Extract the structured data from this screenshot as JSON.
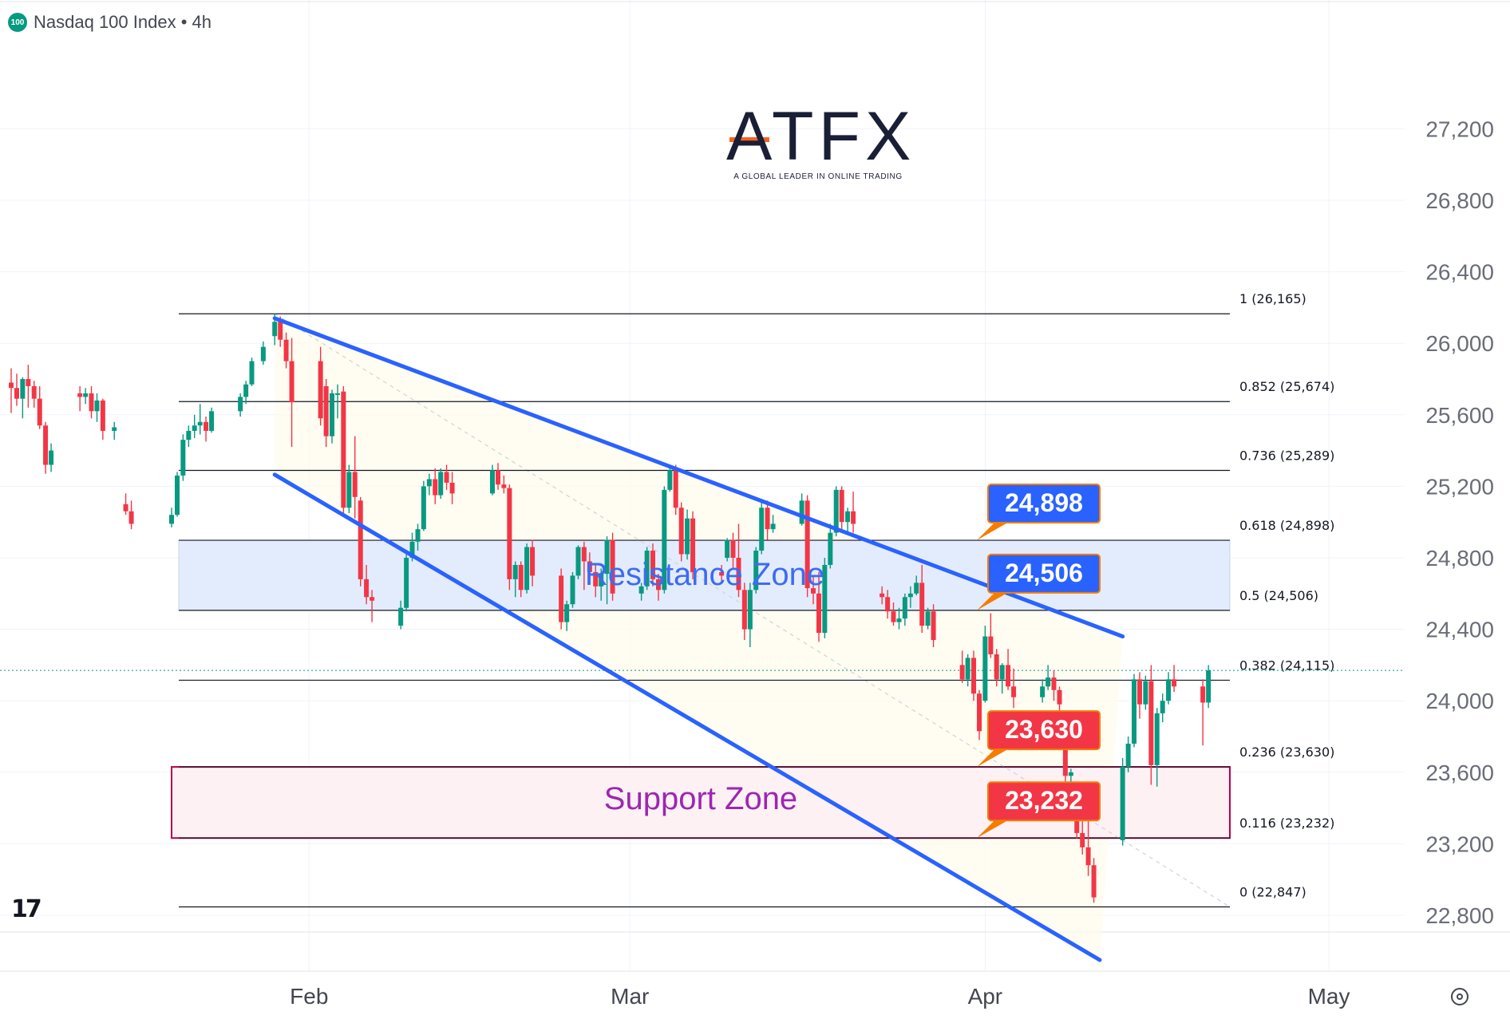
{
  "header": {
    "symbol_badge": "100",
    "title": "Nasdaq 100 Index • 4h"
  },
  "logo": {
    "name": "ATFX",
    "tagline": "A GLOBAL LEADER IN ONLINE TRADING"
  },
  "chart_data": {
    "type": "candlestick",
    "instrument": "Nasdaq 100 Index",
    "timeframe": "4h",
    "x_labels": [
      "Feb",
      "Mar",
      "Apr",
      "May"
    ],
    "y_ticks": [
      "27,200",
      "26,800",
      "26,400",
      "26,000",
      "25,600",
      "25,200",
      "24,800",
      "24,400",
      "24,000",
      "23,600",
      "23,200",
      "22,800"
    ],
    "ylim": [
      22550,
      27300
    ],
    "grid": true,
    "colors": {
      "up": "#089981",
      "down": "#f23645",
      "channel": "#2962ff",
      "resistance_fill": "#e3ecfd",
      "support_fill": "#fdf1f4",
      "support_border": "#b7004a"
    },
    "fib_levels": [
      {
        "ratio": "1",
        "price": 26165,
        "label": "1 (26,165)"
      },
      {
        "ratio": "0.852",
        "price": 25674,
        "label": "0.852 (25,674)"
      },
      {
        "ratio": "0.736",
        "price": 25289,
        "label": "0.736 (25,289)"
      },
      {
        "ratio": "0.618",
        "price": 24898,
        "label": "0.618 (24,898)"
      },
      {
        "ratio": "0.5",
        "price": 24506,
        "label": "0.5 (24,506)"
      },
      {
        "ratio": "0.382",
        "price": 24115,
        "label": "0.382 (24,115)"
      },
      {
        "ratio": "0.236",
        "price": 23630,
        "label": "0.236 (23,630)"
      },
      {
        "ratio": "0.116",
        "price": 23232,
        "label": "0.116 (23,232)"
      },
      {
        "ratio": "0",
        "price": 22847,
        "label": "0 (22,847)"
      }
    ],
    "zones": [
      {
        "name": "Resistance Zone",
        "low": 24506,
        "high": 24898,
        "color": "#3d6cf0"
      },
      {
        "name": "Support Zone",
        "low": 23232,
        "high": 23630,
        "color": "#9c27b0"
      }
    ],
    "price_callouts": [
      {
        "text": "24,898",
        "price": 24898,
        "color": "#2962ff"
      },
      {
        "text": "24,506",
        "price": 24506,
        "color": "#2962ff"
      },
      {
        "text": "23,630",
        "price": 23630,
        "color": "#f23645"
      },
      {
        "text": "23,232",
        "price": 23232,
        "color": "#f23645"
      }
    ],
    "channel": {
      "upper": [
        {
          "date": "Jan 29",
          "price": 26140
        },
        {
          "date": "Apr 13",
          "price": 24360
        }
      ],
      "lower": [
        {
          "date": "Jan 29",
          "price": 25265
        },
        {
          "date": "Apr 11",
          "price": 22550
        }
      ]
    },
    "candles": [
      {
        "t": "Jan 06",
        "o": 25780,
        "h": 25860,
        "l": 25610,
        "c": 25750
      },
      {
        "t": "Jan 06",
        "o": 25750,
        "h": 25830,
        "l": 25650,
        "c": 25690
      },
      {
        "t": "Jan 07",
        "o": 25690,
        "h": 25810,
        "l": 25580,
        "c": 25800
      },
      {
        "t": "Jan 07",
        "o": 25800,
        "h": 25880,
        "l": 25640,
        "c": 25760
      },
      {
        "t": "Jan 08",
        "o": 25760,
        "h": 25790,
        "l": 25640,
        "c": 25690
      },
      {
        "t": "Jan 08",
        "o": 25690,
        "h": 25760,
        "l": 25520,
        "c": 25540
      },
      {
        "t": "Jan 09",
        "o": 25540,
        "h": 25560,
        "l": 25270,
        "c": 25320
      },
      {
        "t": "Jan 09",
        "o": 25320,
        "h": 25440,
        "l": 25280,
        "c": 25400
      },
      {
        "t": "Jan 12",
        "o": 25720,
        "h": 25760,
        "l": 25620,
        "c": 25700
      },
      {
        "t": "Jan 12",
        "o": 25700,
        "h": 25750,
        "l": 25660,
        "c": 25720
      },
      {
        "t": "Jan 13",
        "o": 25720,
        "h": 25760,
        "l": 25580,
        "c": 25620
      },
      {
        "t": "Jan 13",
        "o": 25620,
        "h": 25720,
        "l": 25560,
        "c": 25680
      },
      {
        "t": "Jan 14",
        "o": 25680,
        "h": 25690,
        "l": 25460,
        "c": 25510
      },
      {
        "t": "Jan 15",
        "o": 25510,
        "h": 25560,
        "l": 25460,
        "c": 25530
      },
      {
        "t": "Jan 16",
        "o": 25100,
        "h": 25160,
        "l": 25040,
        "c": 25060
      },
      {
        "t": "Jan 16",
        "o": 25060,
        "h": 25120,
        "l": 24960,
        "c": 24990
      },
      {
        "t": "Jan 20",
        "o": 24990,
        "h": 25080,
        "l": 24970,
        "c": 25040
      },
      {
        "t": "Jan 20",
        "o": 25040,
        "h": 25280,
        "l": 25030,
        "c": 25260
      },
      {
        "t": "Jan 21",
        "o": 25260,
        "h": 25490,
        "l": 25230,
        "c": 25460
      },
      {
        "t": "Jan 21",
        "o": 25460,
        "h": 25540,
        "l": 25420,
        "c": 25510
      },
      {
        "t": "Jan 22",
        "o": 25510,
        "h": 25600,
        "l": 25470,
        "c": 25540
      },
      {
        "t": "Jan 22",
        "o": 25540,
        "h": 25660,
        "l": 25490,
        "c": 25560
      },
      {
        "t": "Jan 23",
        "o": 25560,
        "h": 25590,
        "l": 25450,
        "c": 25510
      },
      {
        "t": "Jan 23",
        "o": 25510,
        "h": 25640,
        "l": 25500,
        "c": 25620
      },
      {
        "t": "Jan 26",
        "o": 25620,
        "h": 25720,
        "l": 25590,
        "c": 25700
      },
      {
        "t": "Jan 26",
        "o": 25700,
        "h": 25790,
        "l": 25660,
        "c": 25770
      },
      {
        "t": "Jan 27",
        "o": 25770,
        "h": 25920,
        "l": 25760,
        "c": 25900
      },
      {
        "t": "Jan 28",
        "o": 25900,
        "h": 26010,
        "l": 25880,
        "c": 25980
      },
      {
        "t": "Jan 29",
        "o": 26040,
        "h": 26165,
        "l": 25990,
        "c": 26120
      },
      {
        "t": "Jan 29",
        "o": 26120,
        "h": 26150,
        "l": 25980,
        "c": 26020
      },
      {
        "t": "Jan 30",
        "o": 26020,
        "h": 26060,
        "l": 25860,
        "c": 25900
      },
      {
        "t": "Jan 30",
        "o": 25900,
        "h": 26030,
        "l": 25420,
        "c": 25670
      },
      {
        "t": "Feb 02",
        "o": 25900,
        "h": 25980,
        "l": 25540,
        "c": 25580
      },
      {
        "t": "Feb 02",
        "o": 25760,
        "h": 25800,
        "l": 25420,
        "c": 25480
      },
      {
        "t": "Feb 03",
        "o": 25480,
        "h": 25740,
        "l": 25440,
        "c": 25720
      },
      {
        "t": "Feb 03",
        "o": 25720,
        "h": 25770,
        "l": 25580,
        "c": 25720
      },
      {
        "t": "Feb 04",
        "o": 25730,
        "h": 25760,
        "l": 25050,
        "c": 25080
      },
      {
        "t": "Feb 04",
        "o": 25080,
        "h": 25320,
        "l": 25050,
        "c": 25280
      },
      {
        "t": "Feb 05",
        "o": 25280,
        "h": 25480,
        "l": 25020,
        "c": 25140
      },
      {
        "t": "Feb 05",
        "o": 25120,
        "h": 25140,
        "l": 24640,
        "c": 24680
      },
      {
        "t": "Feb 06",
        "o": 24680,
        "h": 24760,
        "l": 24540,
        "c": 24580
      },
      {
        "t": "Feb 06",
        "o": 24580,
        "h": 24620,
        "l": 24440,
        "c": 24560
      },
      {
        "t": "Feb 09",
        "o": 24420,
        "h": 24560,
        "l": 24400,
        "c": 24520
      },
      {
        "t": "Feb 09",
        "o": 24520,
        "h": 24820,
        "l": 24500,
        "c": 24800
      },
      {
        "t": "Feb 10",
        "o": 24800,
        "h": 24940,
        "l": 24780,
        "c": 24890
      },
      {
        "t": "Feb 10",
        "o": 24890,
        "h": 24990,
        "l": 24840,
        "c": 24960
      },
      {
        "t": "Feb 11",
        "o": 24960,
        "h": 25230,
        "l": 24950,
        "c": 25200
      },
      {
        "t": "Feb 11",
        "o": 25200,
        "h": 25270,
        "l": 25150,
        "c": 25240
      },
      {
        "t": "Feb 12",
        "o": 25240,
        "h": 25300,
        "l": 25100,
        "c": 25150
      },
      {
        "t": "Feb 12",
        "o": 25150,
        "h": 25300,
        "l": 25130,
        "c": 25280
      },
      {
        "t": "Feb 13",
        "o": 25280,
        "h": 25320,
        "l": 25180,
        "c": 25220
      },
      {
        "t": "Feb 13",
        "o": 25220,
        "h": 25280,
        "l": 25100,
        "c": 25160
      },
      {
        "t": "Feb 17",
        "o": 25160,
        "h": 25320,
        "l": 25150,
        "c": 25290
      },
      {
        "t": "Feb 17",
        "o": 25290,
        "h": 25330,
        "l": 25180,
        "c": 25210
      },
      {
        "t": "Feb 18",
        "o": 25210,
        "h": 25260,
        "l": 25160,
        "c": 25190
      },
      {
        "t": "Feb 18",
        "o": 25190,
        "h": 25210,
        "l": 24620,
        "c": 24680
      },
      {
        "t": "Feb 19",
        "o": 24680,
        "h": 24780,
        "l": 24580,
        "c": 24760
      },
      {
        "t": "Feb 19",
        "o": 24760,
        "h": 24780,
        "l": 24580,
        "c": 24620
      },
      {
        "t": "Feb 20",
        "o": 24620,
        "h": 24880,
        "l": 24600,
        "c": 24860
      },
      {
        "t": "Feb 20",
        "o": 24860,
        "h": 24900,
        "l": 24640,
        "c": 24700
      },
      {
        "t": "Feb 23",
        "o": 24700,
        "h": 24740,
        "l": 24400,
        "c": 24440
      },
      {
        "t": "Feb 23",
        "o": 24440,
        "h": 24560,
        "l": 24390,
        "c": 24540
      },
      {
        "t": "Feb 24",
        "o": 24540,
        "h": 24720,
        "l": 24520,
        "c": 24700
      },
      {
        "t": "Feb 24",
        "o": 24700,
        "h": 24870,
        "l": 24680,
        "c": 24860
      },
      {
        "t": "Feb 25",
        "o": 24860,
        "h": 24890,
        "l": 24620,
        "c": 24780
      },
      {
        "t": "Feb 25",
        "o": 24780,
        "h": 24830,
        "l": 24660,
        "c": 24720
      },
      {
        "t": "Feb 26",
        "o": 24720,
        "h": 24760,
        "l": 24580,
        "c": 24640
      },
      {
        "t": "Feb 26",
        "o": 24640,
        "h": 24740,
        "l": 24560,
        "c": 24710
      },
      {
        "t": "Feb 27",
        "o": 24710,
        "h": 24920,
        "l": 24540,
        "c": 24900
      },
      {
        "t": "Feb 27",
        "o": 24900,
        "h": 24940,
        "l": 24560,
        "c": 24600
      },
      {
        "t": "Mar 02",
        "o": 24600,
        "h": 24660,
        "l": 24560,
        "c": 24640
      },
      {
        "t": "Mar 02",
        "o": 24640,
        "h": 24860,
        "l": 24620,
        "c": 24840
      },
      {
        "t": "Mar 03",
        "o": 24840,
        "h": 24880,
        "l": 24640,
        "c": 24680
      },
      {
        "t": "Mar 03",
        "o": 24680,
        "h": 24710,
        "l": 24560,
        "c": 24620
      },
      {
        "t": "Mar 04",
        "o": 24620,
        "h": 25200,
        "l": 24600,
        "c": 25180
      },
      {
        "t": "Mar 04",
        "o": 25180,
        "h": 25310,
        "l": 25170,
        "c": 25290
      },
      {
        "t": "Mar 05",
        "o": 25290,
        "h": 25320,
        "l": 25040,
        "c": 25080
      },
      {
        "t": "Mar 05",
        "o": 25080,
        "h": 25110,
        "l": 24780,
        "c": 24820
      },
      {
        "t": "Mar 06",
        "o": 24820,
        "h": 25070,
        "l": 24790,
        "c": 25020
      },
      {
        "t": "Mar 06",
        "o": 25020,
        "h": 25060,
        "l": 24680,
        "c": 24720
      },
      {
        "t": "Mar 09",
        "o": 24720,
        "h": 24760,
        "l": 24660,
        "c": 24700
      },
      {
        "t": "Mar 09",
        "o": 24800,
        "h": 24910,
        "l": 24780,
        "c": 24900
      },
      {
        "t": "Mar 10",
        "o": 24900,
        "h": 24940,
        "l": 24740,
        "c": 24800
      },
      {
        "t": "Mar 10",
        "o": 24800,
        "h": 24990,
        "l": 24580,
        "c": 24620
      },
      {
        "t": "Mar 11",
        "o": 24620,
        "h": 24660,
        "l": 24340,
        "c": 24400
      },
      {
        "t": "Mar 11",
        "o": 24400,
        "h": 24660,
        "l": 24300,
        "c": 24620
      },
      {
        "t": "Mar 12",
        "o": 24620,
        "h": 24860,
        "l": 24600,
        "c": 24840
      },
      {
        "t": "Mar 12",
        "o": 24840,
        "h": 25110,
        "l": 24820,
        "c": 25080
      },
      {
        "t": "Mar 13",
        "o": 25080,
        "h": 25120,
        "l": 24900,
        "c": 24960
      },
      {
        "t": "Mar 13",
        "o": 24960,
        "h": 25040,
        "l": 24940,
        "c": 24990
      },
      {
        "t": "Mar 16",
        "o": 24990,
        "h": 25160,
        "l": 24980,
        "c": 25120
      },
      {
        "t": "Mar 16",
        "o": 25120,
        "h": 25150,
        "l": 24580,
        "c": 24630
      },
      {
        "t": "Mar 17",
        "o": 24630,
        "h": 24700,
        "l": 24540,
        "c": 24600
      },
      {
        "t": "Mar 17",
        "o": 24600,
        "h": 24720,
        "l": 24330,
        "c": 24380
      },
      {
        "t": "Mar 18",
        "o": 24380,
        "h": 24800,
        "l": 24350,
        "c": 24760
      },
      {
        "t": "Mar 18",
        "o": 24760,
        "h": 24990,
        "l": 24740,
        "c": 24940
      },
      {
        "t": "Mar 19",
        "o": 24940,
        "h": 25200,
        "l": 24920,
        "c": 25180
      },
      {
        "t": "Mar 19",
        "o": 25180,
        "h": 25200,
        "l": 24960,
        "c": 25000
      },
      {
        "t": "Mar 20",
        "o": 25000,
        "h": 25080,
        "l": 24940,
        "c": 25060
      },
      {
        "t": "Mar 20",
        "o": 25060,
        "h": 25170,
        "l": 24940,
        "c": 24990
      },
      {
        "t": "Mar 23",
        "o": 24600,
        "h": 24640,
        "l": 24540,
        "c": 24580
      },
      {
        "t": "Mar 23",
        "o": 24580,
        "h": 24620,
        "l": 24460,
        "c": 24500
      },
      {
        "t": "Mar 24",
        "o": 24500,
        "h": 24550,
        "l": 24420,
        "c": 24440
      },
      {
        "t": "Mar 24",
        "o": 24440,
        "h": 24520,
        "l": 24400,
        "c": 24460
      },
      {
        "t": "Mar 25",
        "o": 24460,
        "h": 24600,
        "l": 24420,
        "c": 24580
      },
      {
        "t": "Mar 25",
        "o": 24580,
        "h": 24640,
        "l": 24520,
        "c": 24600
      },
      {
        "t": "Mar 26",
        "o": 24600,
        "h": 24700,
        "l": 24590,
        "c": 24660
      },
      {
        "t": "Mar 26",
        "o": 24660,
        "h": 24760,
        "l": 24380,
        "c": 24420
      },
      {
        "t": "Mar 27",
        "o": 24420,
        "h": 24520,
        "l": 24400,
        "c": 24500
      },
      {
        "t": "Mar 27",
        "o": 24500,
        "h": 24540,
        "l": 24300,
        "c": 24340
      },
      {
        "t": "Mar 30",
        "o": 24200,
        "h": 24280,
        "l": 24100,
        "c": 24120
      },
      {
        "t": "Mar 30",
        "o": 24120,
        "h": 24260,
        "l": 24080,
        "c": 24240
      },
      {
        "t": "Mar 31",
        "o": 24240,
        "h": 24280,
        "l": 24000,
        "c": 24040
      },
      {
        "t": "Mar 31",
        "o": 24040,
        "h": 24060,
        "l": 23780,
        "c": 23830
      },
      {
        "t": "Apr 01",
        "o": 24000,
        "h": 24420,
        "l": 23990,
        "c": 24360
      },
      {
        "t": "Apr 01",
        "o": 24360,
        "h": 24490,
        "l": 24240,
        "c": 24260
      },
      {
        "t": "Apr 02",
        "o": 24260,
        "h": 24290,
        "l": 24080,
        "c": 24120
      },
      {
        "t": "Apr 02",
        "o": 24120,
        "h": 24210,
        "l": 24040,
        "c": 24200
      },
      {
        "t": "Apr 03",
        "o": 24200,
        "h": 24290,
        "l": 24060,
        "c": 24080
      },
      {
        "t": "Apr 03",
        "o": 24080,
        "h": 24180,
        "l": 23960,
        "c": 24020
      },
      {
        "t": "Apr 06",
        "o": 24020,
        "h": 24120,
        "l": 23990,
        "c": 24080
      },
      {
        "t": "Apr 06",
        "o": 24080,
        "h": 24200,
        "l": 24060,
        "c": 24130
      },
      {
        "t": "Apr 07",
        "o": 24130,
        "h": 24170,
        "l": 24000,
        "c": 24060
      },
      {
        "t": "Apr 07",
        "o": 24060,
        "h": 24080,
        "l": 23920,
        "c": 23980
      },
      {
        "t": "Apr 08",
        "o": 23740,
        "h": 23760,
        "l": 23520,
        "c": 23580
      },
      {
        "t": "Apr 08",
        "o": 23580,
        "h": 23620,
        "l": 23540,
        "c": 23600
      },
      {
        "t": "Apr 09",
        "o": 23420,
        "h": 23440,
        "l": 23230,
        "c": 23260
      },
      {
        "t": "Apr 09",
        "o": 23260,
        "h": 23330,
        "l": 23140,
        "c": 23180
      },
      {
        "t": "Apr 10",
        "o": 23180,
        "h": 23340,
        "l": 23020,
        "c": 23080
      },
      {
        "t": "Apr 10",
        "o": 23080,
        "h": 23120,
        "l": 22870,
        "c": 22900
      },
      {
        "t": "Apr 13",
        "o": 23220,
        "h": 23680,
        "l": 23190,
        "c": 23630
      },
      {
        "t": "Apr 13",
        "o": 23630,
        "h": 23800,
        "l": 23600,
        "c": 23760
      },
      {
        "t": "Apr 14",
        "o": 23760,
        "h": 24150,
        "l": 23740,
        "c": 24120
      },
      {
        "t": "Apr 14",
        "o": 24120,
        "h": 24160,
        "l": 23900,
        "c": 23980
      },
      {
        "t": "Apr 15",
        "o": 23980,
        "h": 24140,
        "l": 23950,
        "c": 24110
      },
      {
        "t": "Apr 15",
        "o": 24110,
        "h": 24200,
        "l": 23530,
        "c": 23640
      },
      {
        "t": "Apr 16",
        "o": 23640,
        "h": 23960,
        "l": 23520,
        "c": 23930
      },
      {
        "t": "Apr 16",
        "o": 23930,
        "h": 24040,
        "l": 23880,
        "c": 24000
      },
      {
        "t": "Apr 17",
        "o": 24000,
        "h": 24160,
        "l": 23980,
        "c": 24120
      },
      {
        "t": "Apr 17",
        "o": 24120,
        "h": 24200,
        "l": 24050,
        "c": 24080
      },
      {
        "t": "Apr 20",
        "o": 24080,
        "h": 24120,
        "l": 23750,
        "c": 23990
      },
      {
        "t": "Apr 20",
        "o": 23990,
        "h": 24200,
        "l": 23960,
        "c": 24170
      }
    ]
  }
}
